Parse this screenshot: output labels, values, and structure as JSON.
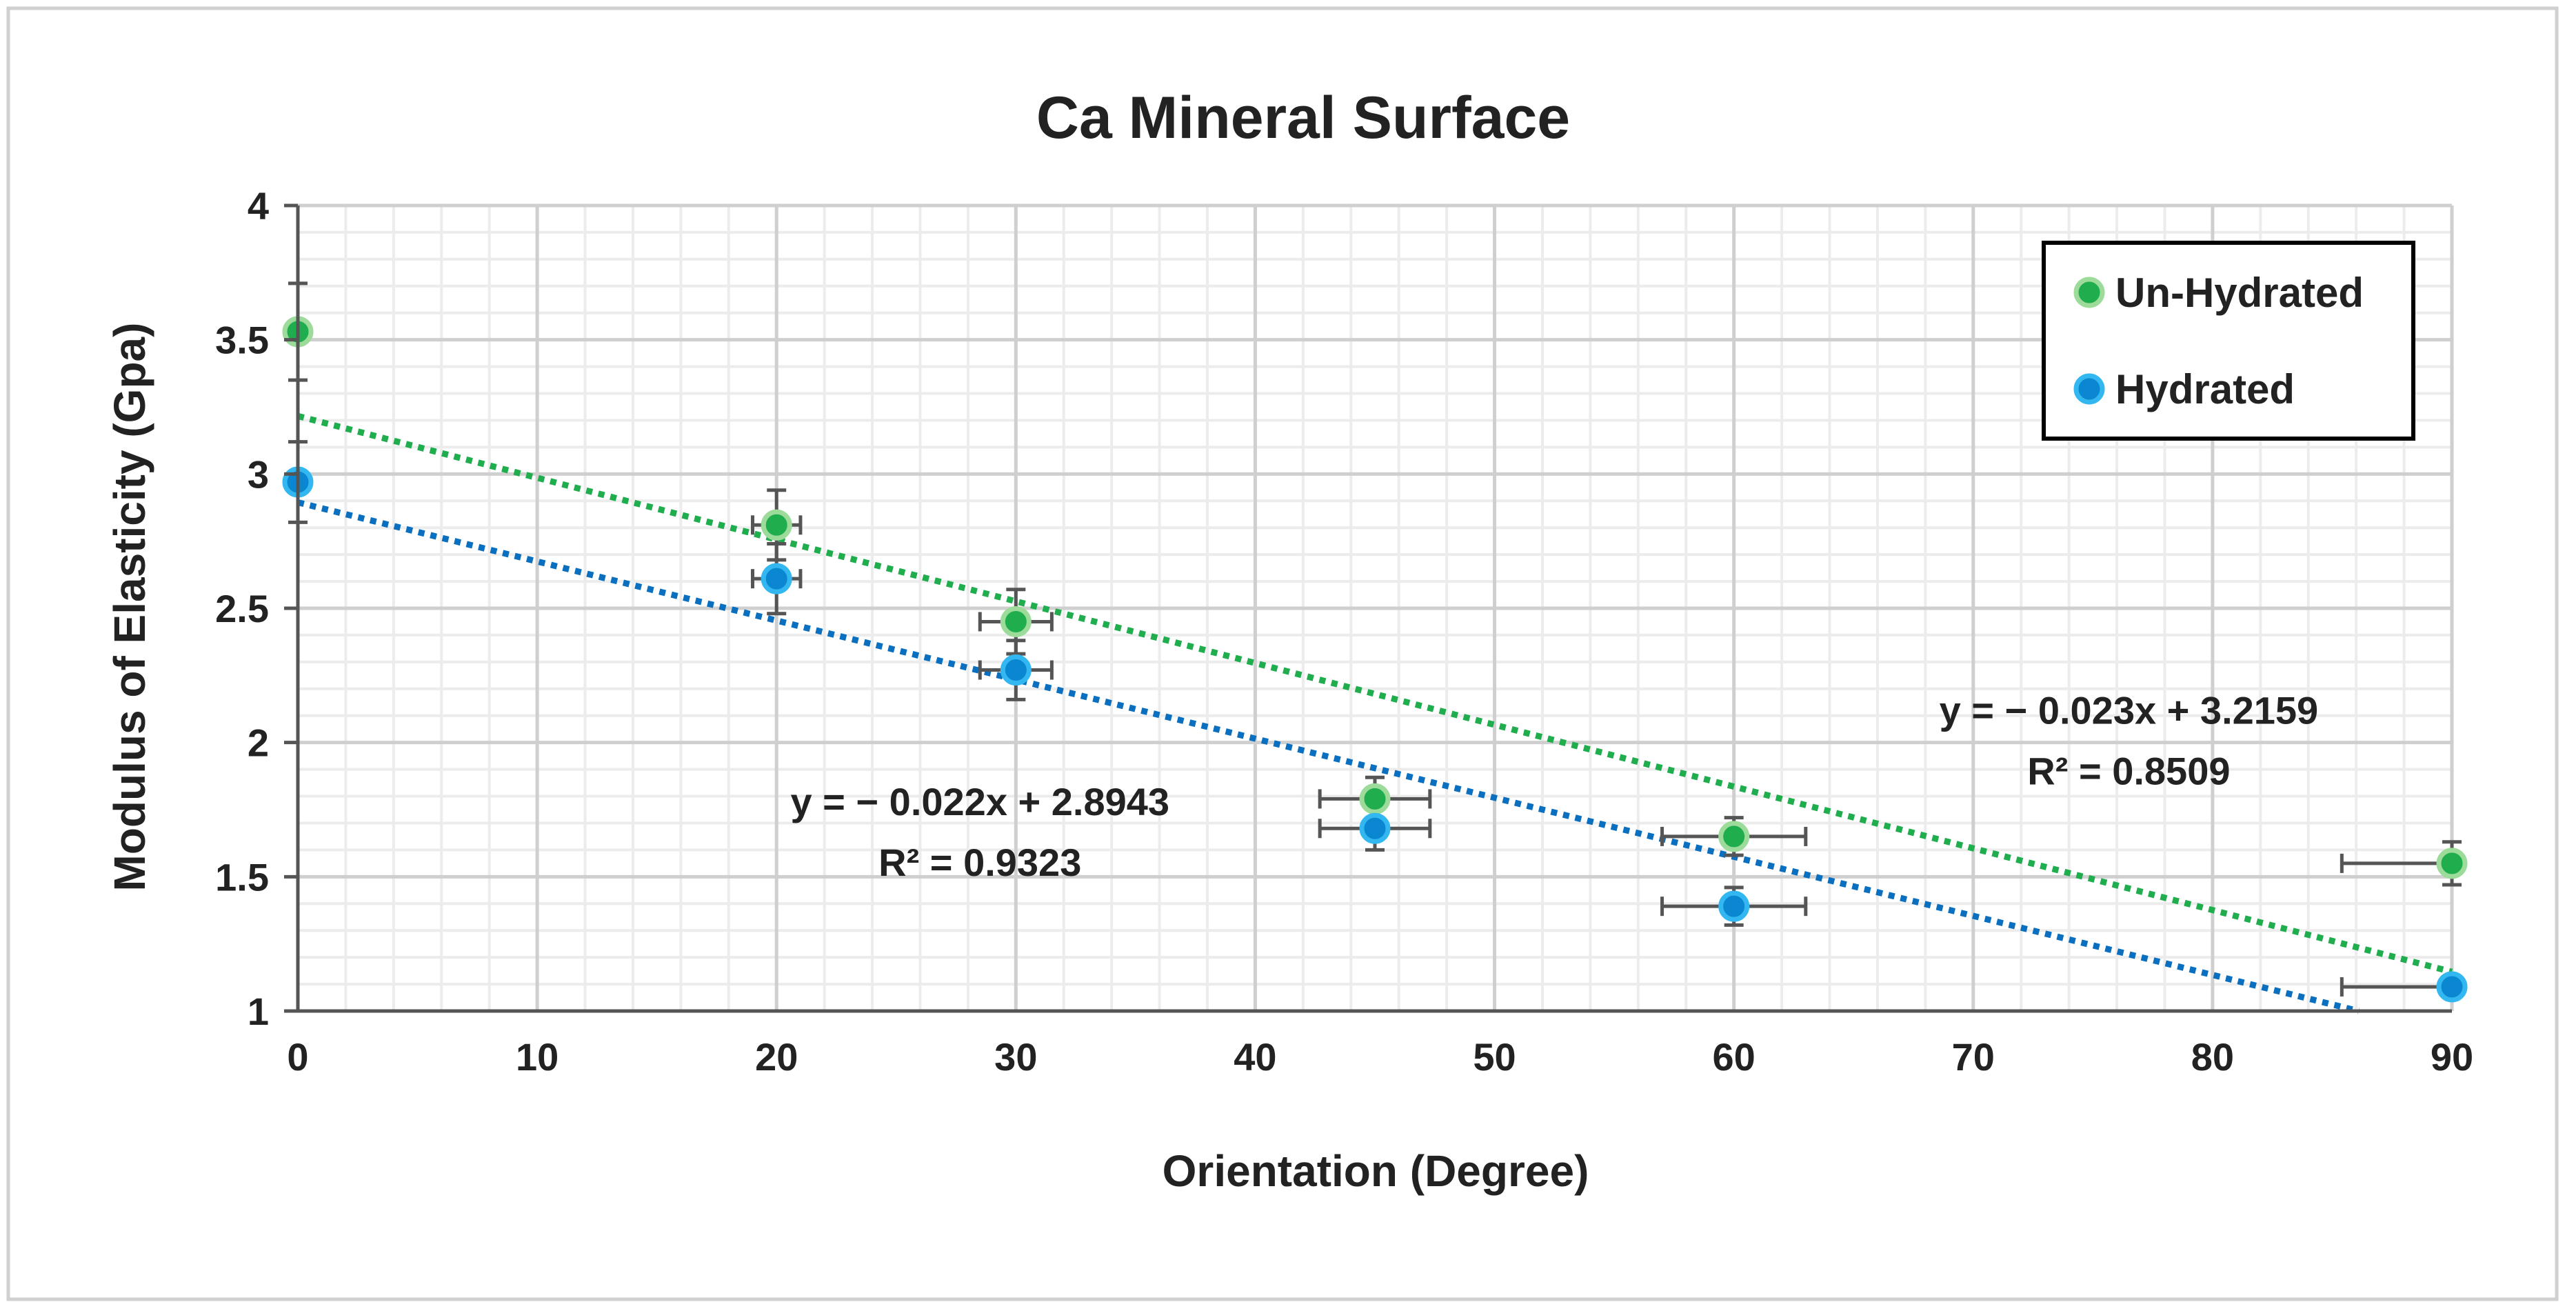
{
  "chart_data": {
    "type": "scatter",
    "title": "Ca Mineral Surface",
    "xlabel": "Orientation (Degree)",
    "ylabel": "Modulus of Elasticity (Gpa)",
    "xlim": [
      0,
      90
    ],
    "ylim": [
      1,
      4
    ],
    "x_ticks": [
      "0",
      "10",
      "20",
      "30",
      "40",
      "50",
      "60",
      "70",
      "80",
      "90"
    ],
    "y_ticks": [
      "1",
      "1.5",
      "2",
      "2.5",
      "3",
      "3.5",
      "4"
    ],
    "grid": true,
    "legend_position": "top-right",
    "series": [
      {
        "name": "Un-Hydrated",
        "color": "#1fad4e",
        "x": [
          0,
          20,
          30,
          45,
          60,
          90
        ],
        "y": [
          3.53,
          2.81,
          2.45,
          1.79,
          1.65,
          1.55
        ],
        "y_err": [
          0.18,
          0.13,
          0.12,
          0.08,
          0.07,
          0.08
        ],
        "x_err": [
          0,
          1,
          1.5,
          2.3,
          3,
          4.6
        ],
        "trendline": {
          "slope": -0.023,
          "intercept": 3.2159,
          "color": "#1fad4e"
        }
      },
      {
        "name": "Hydrated",
        "color": "#0b86d0",
        "x": [
          0,
          20,
          30,
          45,
          60,
          90
        ],
        "y": [
          2.97,
          2.61,
          2.27,
          1.68,
          1.39,
          1.09
        ],
        "y_err": [
          0.15,
          0.13,
          0.11,
          0.08,
          0.07,
          0.02
        ],
        "x_err": [
          0,
          1,
          1.5,
          2.3,
          3,
          4.6
        ],
        "trendline": {
          "slope": -0.022,
          "intercept": 2.8943,
          "color": "#0b6fc0"
        }
      }
    ],
    "annotations": [
      {
        "line1": "y = − 0.023x + 3.2159",
        "line2": "R² = 0.8509",
        "x": 76.5,
        "y": 2.07
      },
      {
        "line1": "y = − 0.022x + 2.8943",
        "line2": "R² = 0.9323",
        "x": 28.5,
        "y": 1.73
      }
    ]
  }
}
